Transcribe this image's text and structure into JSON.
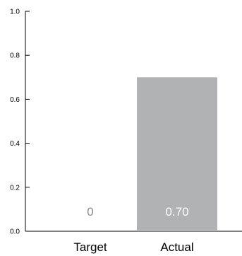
{
  "chart_data": {
    "type": "bar",
    "categories": [
      "Target",
      "Actual"
    ],
    "values": [
      0,
      0.7
    ],
    "value_labels": [
      "0",
      "0.70"
    ],
    "title": "",
    "xlabel": "",
    "ylabel": "",
    "ylim": [
      0,
      1.0
    ],
    "yticks": [
      0.0,
      0.2,
      0.4,
      0.6,
      0.8,
      1.0
    ],
    "ytick_labels": [
      "0.0",
      "0.2",
      "0.4",
      "0.6",
      "0.8",
      "1.0"
    ],
    "grid": false,
    "legend": "none",
    "colors": {
      "bar": "#b0b2b4",
      "axis": "#000000",
      "value_label_on_bar": "#ffffff",
      "value_label_off_bar": "#8a8a8a"
    }
  }
}
